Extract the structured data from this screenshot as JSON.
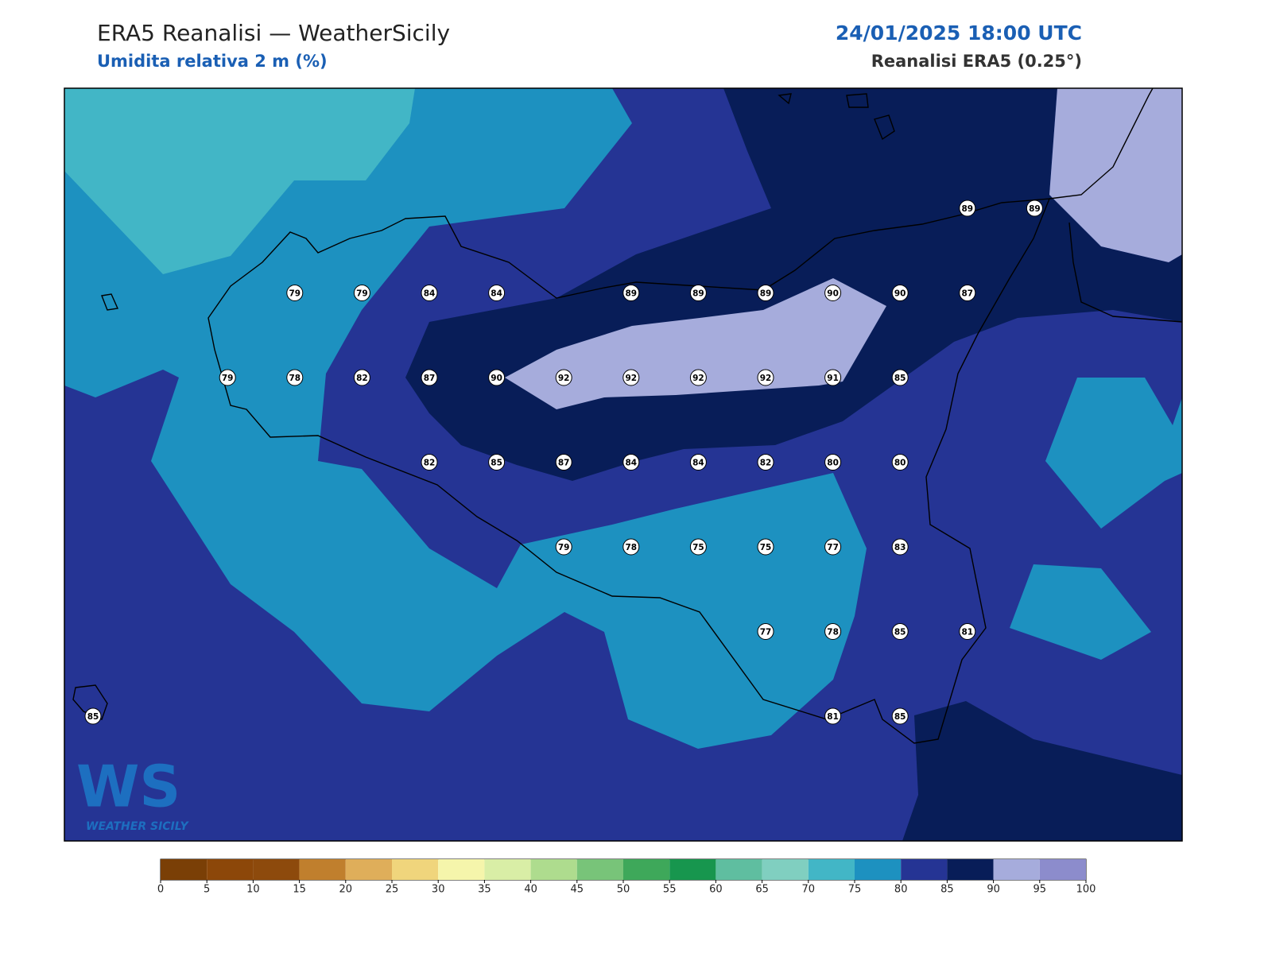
{
  "header": {
    "title": "ERA5 Reanalisi — WeatherSicily",
    "subtitle": "Umidita relativa 2 m (%)",
    "datetime": "24/01/2025 18:00 UTC",
    "source": "Reanalisi ERA5 (0.25°)"
  },
  "logo": {
    "mark": "WS",
    "text": "WEATHER SICILY"
  },
  "stations": {
    "rows": [
      [
        null,
        null,
        null,
        null,
        null,
        null,
        null,
        null,
        null,
        null,
        null,
        null,
        null,
        89,
        89
      ],
      [
        null,
        null,
        null,
        79,
        79,
        84,
        84,
        null,
        89,
        89,
        89,
        90,
        90,
        87,
        null
      ],
      [
        null,
        null,
        79,
        78,
        82,
        87,
        90,
        92,
        92,
        92,
        92,
        91,
        85,
        null,
        null
      ],
      [
        null,
        null,
        null,
        null,
        null,
        82,
        85,
        87,
        84,
        84,
        82,
        80,
        80,
        null,
        null
      ],
      [
        null,
        null,
        null,
        null,
        null,
        null,
        null,
        79,
        78,
        75,
        75,
        77,
        83,
        null,
        null
      ],
      [
        null,
        null,
        null,
        null,
        null,
        null,
        null,
        null,
        null,
        null,
        77,
        78,
        85,
        81,
        null
      ],
      [
        85,
        null,
        null,
        null,
        null,
        null,
        null,
        null,
        null,
        null,
        null,
        81,
        85,
        null,
        null
      ]
    ]
  },
  "colorbar": {
    "ticks": [
      0,
      5,
      10,
      15,
      20,
      25,
      30,
      35,
      40,
      45,
      50,
      55,
      60,
      65,
      70,
      75,
      80,
      85,
      90,
      95,
      100
    ],
    "colors": [
      "#7a3f06",
      "#8c4709",
      "#8d4a0c",
      "#c07f2d",
      "#dfae5a",
      "#f0d57c",
      "#f5f5ab",
      "#d9eea6",
      "#aedc8e",
      "#78c479",
      "#3ea85a",
      "#17964e",
      "#5fbea0",
      "#80cfc0",
      "#42b6c6",
      "#1d91c0",
      "#253494",
      "#081d58",
      "#a6acdc",
      "#8c8ccc"
    ]
  }
}
